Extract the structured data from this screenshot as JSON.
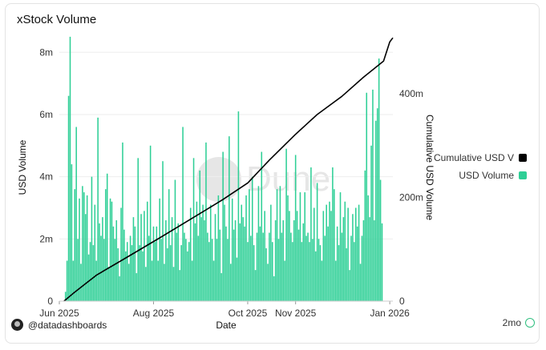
{
  "title": "xStock Volume",
  "footer": {
    "user": "@datadashboards",
    "refresh": "2mo"
  },
  "watermark": "Dune",
  "colors": {
    "bar": "#2ecf96",
    "line": "#000000",
    "grid": "#eeeeee",
    "axis_text": "#333333"
  },
  "chart_data": {
    "type": "bar+line",
    "xlabel": "Date",
    "ylabel_left": "USD Volume",
    "ylabel_right": "Cumulative USD Volume",
    "y_left_ticks": [
      "0",
      "2m",
      "4m",
      "6m",
      "8m"
    ],
    "y_left_range": [
      0,
      8600000
    ],
    "y_right_ticks": [
      "0",
      "200m",
      "400m"
    ],
    "y_right_range": [
      0,
      516000000
    ],
    "x_range": [
      "2025-06-01",
      "2026-01-03"
    ],
    "x_ticks": [
      {
        "date": "2025-06-01",
        "label": "Jun 2025"
      },
      {
        "date": "2025-08-01",
        "label": "Aug 2025"
      },
      {
        "date": "2025-10-01",
        "label": "Oct 2025"
      },
      {
        "date": "2025-11-01",
        "label": "Nov 2025"
      },
      {
        "date": "2026-01-01",
        "label": "Jan 2026"
      }
    ],
    "series": [
      {
        "name": "Cumulative USD V",
        "type": "line",
        "color": "#000000"
      },
      {
        "name": "USD Volume",
        "type": "bar",
        "color": "#2ecf96"
      }
    ],
    "bar_values_m": [
      0.3,
      1.3,
      6.6,
      8.5,
      4.4,
      1.3,
      3.6,
      5.6,
      2.0,
      3.3,
      1.2,
      3.7,
      3.5,
      2.8,
      3.4,
      1.5,
      1.9,
      4.0,
      1.8,
      3.1,
      1.3,
      5.9,
      2.5,
      2.1,
      2.7,
      2.0,
      3.6,
      4.1,
      1.1,
      3.3,
      3.2,
      2.4,
      2.0,
      2.6,
      1.7,
      0.8,
      3.0,
      5.1,
      2.3,
      1.6,
      1.9,
      1.2,
      2.1,
      1.8,
      2.7,
      2.4,
      0.9,
      4.6,
      1.8,
      2.8,
      1.6,
      2.9,
      1.1,
      3.2,
      2.1,
      5.0,
      1.3,
      2.4,
      1.9,
      2.4,
      1.3,
      3.3,
      2.0,
      4.5,
      1.2,
      2.6,
      1.7,
      3.6,
      1.8,
      2.7,
      1.1,
      3.9,
      2.2,
      2.5,
      1.0,
      1.8,
      5.6,
      2.2,
      2.0,
      1.6,
      1.9,
      3.0,
      1.3,
      4.6,
      2.5,
      3.2,
      2.1,
      4.2,
      2.7,
      3.1,
      2.6,
      5.1,
      2.2,
      1.9,
      3.1,
      2.0,
      1.3,
      2.8,
      2.0,
      3.4,
      2.3,
      0.9,
      4.8,
      3.1,
      2.4,
      2.0,
      5.3,
      1.2,
      3.3,
      2.3,
      2.6,
      1.4,
      6.1,
      2.5,
      3.1,
      2.7,
      2.4,
      3.4,
      1.9,
      3.6,
      2.1,
      4.0,
      1.8,
      1.0,
      2.2,
      3.7,
      2.4,
      4.8,
      2.2,
      2.9,
      1.7,
      1.2,
      2.2,
      3.1,
      1.9,
      0.8,
      2.6,
      3.6,
      2.0,
      3.7,
      2.2,
      2.6,
      1.3,
      4.9,
      3.4,
      2.9,
      2.2,
      1.9,
      2.6,
      4.7,
      2.9,
      2.3,
      3.5,
      1.9,
      2.5,
      3.5,
      2.1,
      2.2,
      1.9,
      4.3,
      2.0,
      3.0,
      1.6,
      3.8,
      2.0,
      1.8,
      1.3,
      2.9,
      2.1,
      3.1,
      2.4,
      3.2,
      2.9,
      4.3,
      3.6,
      1.3,
      2.4,
      1.8,
      3.5,
      2.2,
      2.7,
      3.2,
      1.7,
      3.0,
      1.0,
      2.1,
      2.8,
      1.9,
      3.0,
      2.4,
      3.1,
      1.2,
      2.1,
      2.6,
      4.2,
      6.7,
      3.4,
      2.7,
      5.0,
      6.8,
      2.6,
      5.8,
      6.2,
      7.8,
      3.9,
      2.5
    ],
    "cumulative_m": [
      {
        "date": "2025-06-04",
        "value": 0
      },
      {
        "date": "2025-06-10",
        "value": 15
      },
      {
        "date": "2025-06-25",
        "value": 50
      },
      {
        "date": "2025-07-15",
        "value": 85
      },
      {
        "date": "2025-08-05",
        "value": 122
      },
      {
        "date": "2025-08-25",
        "value": 158
      },
      {
        "date": "2025-09-15",
        "value": 196
      },
      {
        "date": "2025-10-01",
        "value": 228
      },
      {
        "date": "2025-10-15",
        "value": 272
      },
      {
        "date": "2025-11-01",
        "value": 322
      },
      {
        "date": "2025-11-15",
        "value": 360
      },
      {
        "date": "2025-12-01",
        "value": 395
      },
      {
        "date": "2025-12-15",
        "value": 432
      },
      {
        "date": "2025-12-28",
        "value": 463
      },
      {
        "date": "2026-01-01",
        "value": 500
      },
      {
        "date": "2026-01-03",
        "value": 508
      }
    ]
  }
}
